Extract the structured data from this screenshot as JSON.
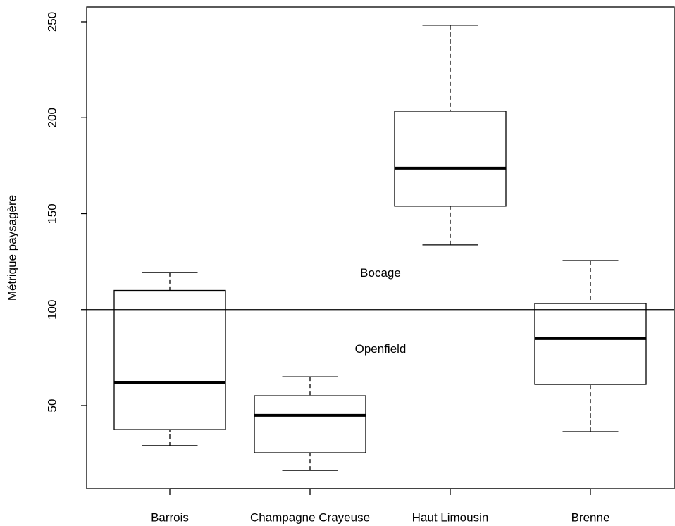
{
  "chart_data": {
    "type": "box",
    "y_label": "Métrique paysagère",
    "categories": [
      "Barrois",
      "Champagne Crayeuse",
      "Haut Limousin",
      "Brenne"
    ],
    "boxes": [
      {
        "min": 29.1,
        "q1": 37.5,
        "median": 62.1,
        "q3": 110,
        "max": 119.4
      },
      {
        "min": 16.2,
        "q1": 25.4,
        "median": 44.9,
        "q3": 55.1,
        "max": 65
      },
      {
        "min": 133.7,
        "q1": 153.9,
        "median": 173.7,
        "q3": 203.4,
        "max": 248.2
      },
      {
        "min": 36.4,
        "q1": 61,
        "median": 84.9,
        "q3": 103.2,
        "max": 125.6
      }
    ],
    "hline": 100,
    "annotations": [
      "Bocage",
      "Openfield"
    ],
    "ylim": [
      6.7,
      257.7
    ],
    "yticks": [
      50,
      100,
      150,
      200,
      250
    ]
  }
}
